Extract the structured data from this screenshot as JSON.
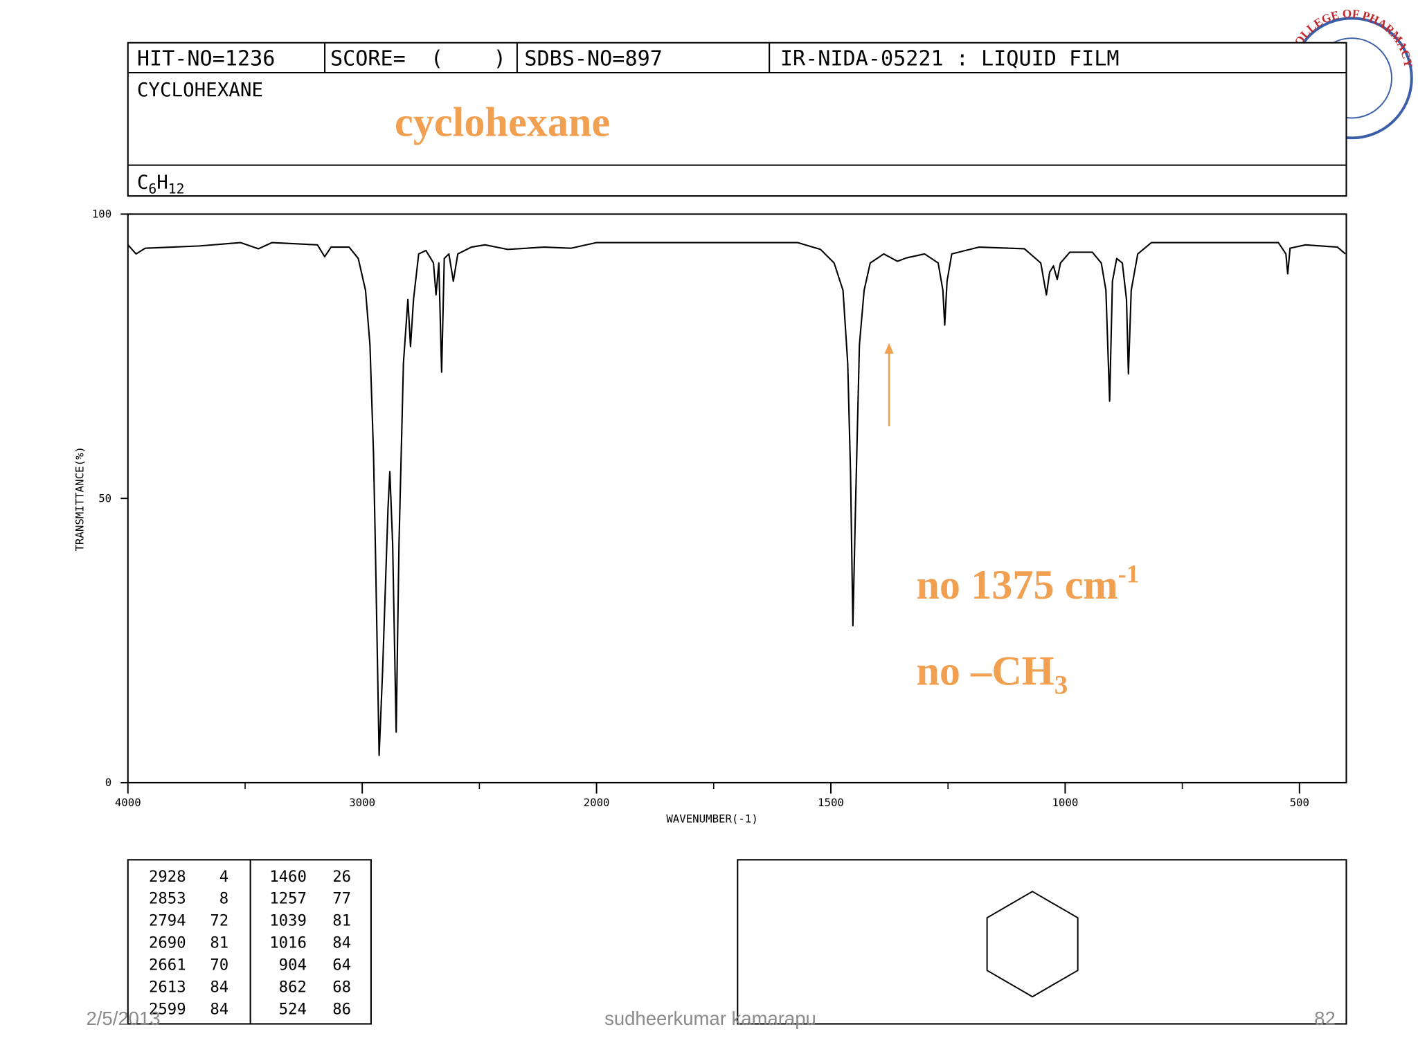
{
  "header": {
    "hit_no": "HIT-NO=1236",
    "score": "SCORE=  (    )",
    "sdbs_no": "SDBS-NO=897",
    "method": "IR-NIDA-05221 : LIQUID FILM",
    "compound": "CYCLOHEXANE",
    "formula": {
      "c": "C",
      "c_sub": "6",
      "h": "H",
      "h_sub": "12"
    },
    "note": "cyclohexane"
  },
  "logo": "COLLEGE OF PHARMACY",
  "chart_data": {
    "type": "line",
    "ylabel": "TRANSMITTANCE(%)",
    "xlabel": "WAVENUMBER(-1)",
    "xlim": [
      4000,
      400
    ],
    "x_scale_split": 2000,
    "xticks": [
      4000,
      3000,
      2000,
      1500,
      1000,
      500
    ],
    "xminorticks": [
      3500,
      2500,
      1750,
      1250,
      750
    ],
    "ylim": [
      0,
      100
    ],
    "yticks": [
      0,
      50,
      100
    ],
    "x": [
      4000,
      3965,
      3926,
      3694,
      3520,
      3443,
      3385,
      3191,
      3160,
      3133,
      3056,
      3017,
      2986,
      2967,
      2952,
      2944,
      2928,
      2913,
      2890,
      2882,
      2870,
      2855,
      2843,
      2824,
      2805,
      2794,
      2781,
      2759,
      2728,
      2696,
      2685,
      2673,
      2661,
      2650,
      2630,
      2611,
      2592,
      2534,
      2476,
      2379,
      2224,
      2108,
      2000,
      1957,
      1571,
      1522,
      1493,
      1474,
      1464,
      1458,
      1453,
      1447,
      1439,
      1429,
      1416,
      1387,
      1358,
      1339,
      1300,
      1271,
      1261,
      1257,
      1252,
      1242,
      1184,
      1087,
      1052,
      1040,
      1033,
      1025,
      1017,
      1010,
      990,
      942,
      923,
      913,
      905,
      899,
      890,
      878,
      869,
      865,
      859,
      845,
      816,
      545,
      529,
      525,
      520,
      487,
      419,
      402
    ],
    "values": [
      94.6,
      93,
      94,
      94.4,
      95,
      93.9,
      95,
      94.6,
      92.5,
      94.2,
      94.2,
      92.2,
      86.6,
      77,
      57.9,
      42,
      4.8,
      19.6,
      48.3,
      54.7,
      42,
      8.9,
      42,
      73.8,
      85,
      76.7,
      85,
      93,
      93.6,
      91.4,
      85.8,
      91.4,
      72.2,
      92.2,
      93,
      88.2,
      93,
      94.2,
      94.6,
      93.8,
      94.2,
      94,
      95,
      95,
      95,
      93.8,
      91.4,
      86.6,
      73.8,
      54.7,
      27.6,
      49.9,
      77,
      86.6,
      91.4,
      93,
      91.7,
      92.3,
      93,
      91.4,
      86.6,
      80.5,
      88.2,
      93,
      94.2,
      93.9,
      91.4,
      85.8,
      89.8,
      90.9,
      88.5,
      91.4,
      93.3,
      93.3,
      91.4,
      86.6,
      67.1,
      88.2,
      92.2,
      91.4,
      85,
      71.9,
      86.6,
      93,
      95,
      95,
      93,
      89.5,
      94,
      94.6,
      94.2,
      93
    ],
    "color": "#000000",
    "annotations": {
      "line1": "no 1375 cm",
      "line1_sup": "-1",
      "line2": "no –CH",
      "line2_sub": "3"
    }
  },
  "peak_table": {
    "rows": [
      [
        2928,
        4,
        1460,
        26
      ],
      [
        2853,
        8,
        1257,
        77
      ],
      [
        2794,
        72,
        1039,
        81
      ],
      [
        2690,
        81,
        1016,
        84
      ],
      [
        2661,
        70,
        904,
        64
      ],
      [
        2613,
        84,
        862,
        68
      ],
      [
        2599,
        84,
        524,
        86
      ]
    ]
  },
  "footer": {
    "date": "2/5/2013",
    "author": "sudheerkumar kamarapu",
    "page": "82"
  }
}
